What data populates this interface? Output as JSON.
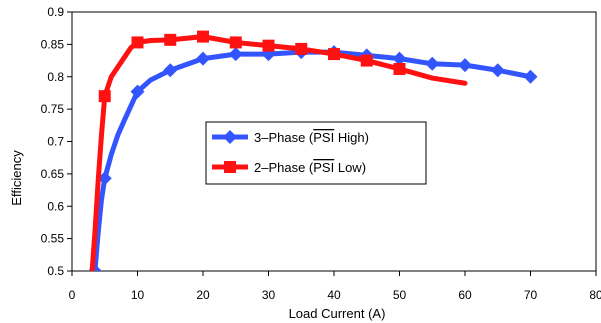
{
  "chart_data": {
    "type": "line",
    "title": "",
    "xlabel": "Load Current (A)",
    "ylabel": "Efficiency",
    "xlim": [
      0,
      80
    ],
    "ylim": [
      0.5,
      0.9
    ],
    "xticks": [
      0,
      10,
      20,
      30,
      40,
      50,
      60,
      70,
      80
    ],
    "yticks": [
      0.5,
      0.55,
      0.6,
      0.65,
      0.7,
      0.75,
      0.8,
      0.85,
      0.9
    ],
    "xtick_labels": [
      "0",
      "10",
      "20",
      "30",
      "40",
      "50",
      "60",
      "70",
      "80"
    ],
    "ytick_labels": [
      "0.5",
      "0.55",
      "0.6",
      "0.65",
      "0.7",
      "0.75",
      "0.8",
      "0.85",
      "0.9"
    ],
    "grid": false,
    "legend_position": "center",
    "series": [
      {
        "name": "3-Phase (PSI High)",
        "name_prefix": "3–Phase (",
        "name_overlined": "PSI",
        "name_suffix": " High)",
        "color": "#3355ff",
        "marker": "diamond",
        "x": [
          3.5,
          5,
          10,
          15,
          20,
          25,
          30,
          35,
          40,
          45,
          50,
          55,
          60,
          65,
          70
        ],
        "y": [
          0.5,
          0.643,
          0.777,
          0.81,
          0.828,
          0.835,
          0.835,
          0.838,
          0.838,
          0.833,
          0.828,
          0.82,
          0.818,
          0.81,
          0.8
        ],
        "curve_x": [
          3.5,
          4,
          4.5,
          5,
          6,
          7,
          8,
          10,
          12,
          15,
          20,
          25,
          30,
          35,
          40,
          45,
          50,
          55,
          60,
          65,
          70
        ],
        "curve_y": [
          0.5,
          0.56,
          0.61,
          0.643,
          0.68,
          0.71,
          0.733,
          0.777,
          0.795,
          0.81,
          0.828,
          0.835,
          0.835,
          0.838,
          0.838,
          0.833,
          0.828,
          0.82,
          0.818,
          0.81,
          0.8
        ]
      },
      {
        "name": "2-Phase (PSI Low)",
        "name_prefix": "2–Phase (",
        "name_overlined": "PSI",
        "name_suffix": " Low)",
        "color": "#ff1111",
        "marker": "square",
        "x": [
          5,
          10,
          15,
          20,
          25,
          30,
          35,
          40,
          45,
          50
        ],
        "y": [
          0.77,
          0.853,
          0.857,
          0.862,
          0.853,
          0.848,
          0.843,
          0.835,
          0.825,
          0.812
        ],
        "curve_x": [
          3,
          3.5,
          4,
          4.5,
          5,
          6,
          7,
          8,
          9,
          10,
          12,
          15,
          20,
          25,
          30,
          35,
          40,
          45,
          50,
          55,
          60
        ],
        "curve_y": [
          0.49,
          0.56,
          0.64,
          0.71,
          0.77,
          0.8,
          0.815,
          0.83,
          0.845,
          0.853,
          0.856,
          0.857,
          0.862,
          0.853,
          0.848,
          0.843,
          0.835,
          0.825,
          0.812,
          0.798,
          0.79
        ]
      }
    ]
  }
}
